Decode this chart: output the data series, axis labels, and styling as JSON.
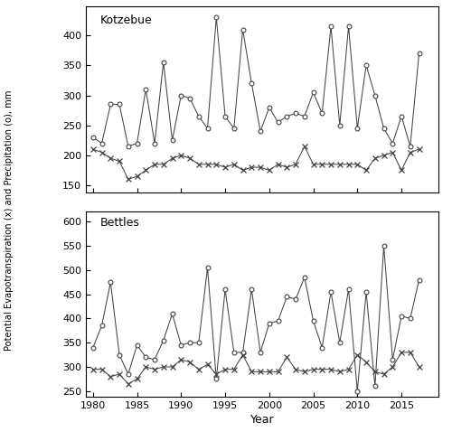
{
  "years": [
    1980,
    1981,
    1982,
    1983,
    1984,
    1985,
    1986,
    1987,
    1988,
    1989,
    1990,
    1991,
    1992,
    1993,
    1994,
    1995,
    1996,
    1997,
    1998,
    1999,
    2000,
    2001,
    2002,
    2003,
    2004,
    2005,
    2006,
    2007,
    2008,
    2009,
    2010,
    2011,
    2012,
    2013,
    2014,
    2015,
    2016,
    2017,
    2018
  ],
  "kotz_precip": [
    230,
    220,
    285,
    285,
    215,
    220,
    310,
    220,
    355,
    225,
    300,
    295,
    265,
    245,
    430,
    265,
    245,
    410,
    320,
    240,
    280,
    255,
    265,
    270,
    265,
    305,
    270,
    415,
    250,
    415,
    245,
    350,
    300,
    245,
    220,
    265,
    215,
    370,
    null
  ],
  "kotz_pet": [
    210,
    205,
    195,
    190,
    160,
    165,
    175,
    185,
    185,
    195,
    200,
    195,
    185,
    185,
    185,
    180,
    185,
    175,
    180,
    180,
    175,
    185,
    180,
    185,
    215,
    185,
    185,
    185,
    185,
    185,
    185,
    175,
    195,
    200,
    205,
    175,
    205,
    210,
    null
  ],
  "bettles_precip": [
    340,
    385,
    475,
    325,
    285,
    345,
    320,
    315,
    355,
    410,
    345,
    350,
    350,
    505,
    275,
    460,
    330,
    330,
    460,
    330,
    390,
    395,
    445,
    440,
    485,
    395,
    340,
    455,
    350,
    460,
    250,
    455,
    260,
    550,
    315,
    405,
    400,
    480,
    null
  ],
  "bettles_pet": [
    295,
    295,
    280,
    285,
    265,
    275,
    300,
    295,
    300,
    300,
    315,
    310,
    295,
    305,
    285,
    295,
    295,
    325,
    290,
    290,
    290,
    290,
    320,
    295,
    290,
    295,
    295,
    295,
    290,
    295,
    325,
    310,
    290,
    285,
    300,
    330,
    330,
    300,
    null
  ],
  "kotz_ylim": [
    138,
    448
  ],
  "kotz_yticks": [
    150,
    200,
    250,
    300,
    350,
    400
  ],
  "bettles_ylim": [
    238,
    622
  ],
  "bettles_yticks": [
    250,
    300,
    350,
    400,
    450,
    500,
    550,
    600
  ],
  "xticks": [
    1980,
    1985,
    1990,
    1995,
    2000,
    2005,
    2010,
    2015
  ],
  "xlabel": "Year",
  "ylabel": "Potential Evapotranspiration (x) and Precipitation (o), mm",
  "kotz_label": "Kotzebue",
  "bettles_label": "Bettles",
  "line_color": "#444444",
  "bg_color": "#ffffff"
}
